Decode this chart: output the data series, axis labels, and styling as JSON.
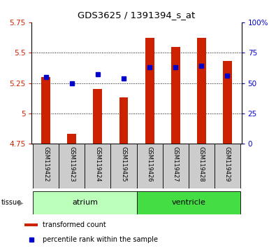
{
  "title": "GDS3625 / 1391394_s_at",
  "samples": [
    "GSM119422",
    "GSM119423",
    "GSM119424",
    "GSM119425",
    "GSM119426",
    "GSM119427",
    "GSM119428",
    "GSM119429"
  ],
  "red_values": [
    5.3,
    4.83,
    5.2,
    5.13,
    5.62,
    5.55,
    5.62,
    5.43
  ],
  "blue_values_pct": [
    55,
    50,
    57,
    54,
    63,
    63,
    64,
    56
  ],
  "ylim_left": [
    4.75,
    5.75
  ],
  "ylim_right": [
    0,
    100
  ],
  "yticks_left": [
    4.75,
    5.0,
    5.25,
    5.5,
    5.75
  ],
  "yticks_right": [
    0,
    25,
    50,
    75,
    100
  ],
  "ytick_labels_left": [
    "4.75",
    "5",
    "5.25",
    "5.5",
    "5.75"
  ],
  "ytick_labels_right": [
    "0",
    "25",
    "50",
    "75",
    "100%"
  ],
  "bar_bottom": 4.75,
  "red_color": "#cc2200",
  "blue_color": "#0000cc",
  "atrium_color": "#bbffbb",
  "ventricle_color": "#44dd44",
  "label_bg_color": "#cccccc",
  "legend_red": "transformed count",
  "legend_blue": "percentile rank within the sample",
  "bar_width": 0.35,
  "grid_lines": [
    5.0,
    5.25,
    5.5
  ],
  "atrium_samples": 4,
  "ventricle_samples": 4
}
